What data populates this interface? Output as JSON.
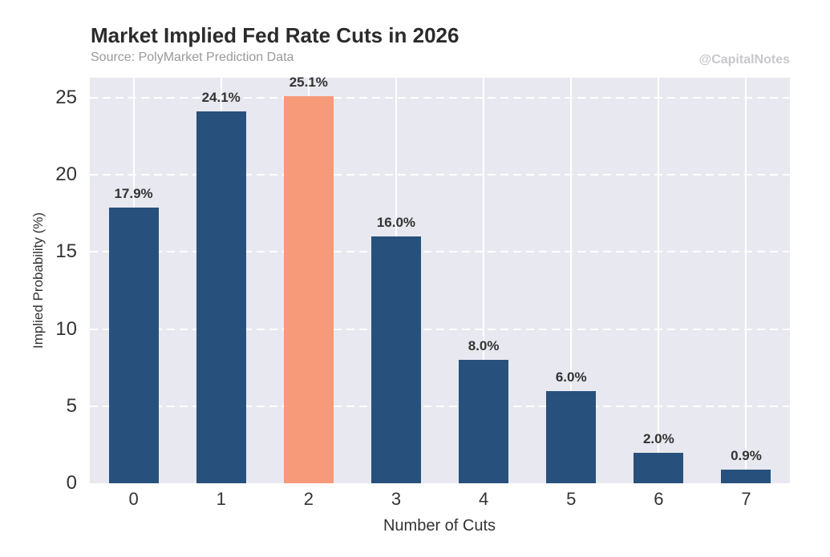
{
  "header": {
    "title": "Market Implied Fed Rate Cuts in 2026",
    "subtitle": "Source: PolyMarket Prediction Data",
    "watermark": "@CapitalNotes"
  },
  "chart_data": {
    "type": "bar",
    "title": "Market Implied Fed Rate Cuts in 2026",
    "subtitle": "Source: PolyMarket Prediction Data",
    "xlabel": "Number of Cuts",
    "ylabel": "Implied Probability (%)",
    "categories": [
      "0",
      "1",
      "2",
      "3",
      "4",
      "5",
      "6",
      "7"
    ],
    "values": [
      17.9,
      24.1,
      25.1,
      16.0,
      8.0,
      6.0,
      2.0,
      0.9
    ],
    "bar_labels": [
      "17.9%",
      "24.1%",
      "25.1%",
      "16.0%",
      "8.0%",
      "6.0%",
      "2.0%",
      "0.9%"
    ],
    "highlight_index": 2,
    "ylim": [
      0,
      26.3
    ],
    "yticks": [
      0,
      5,
      10,
      15,
      20,
      25
    ],
    "legend_position": "none",
    "grid": {
      "horizontal": "dashed-white",
      "vertical": "solid-white"
    },
    "colors": {
      "bar": "#27517c",
      "highlight_bar": "#f79a7a",
      "plot_background": "#e8e8f0",
      "figure_background": "#ffffff",
      "gridline": "#ffffff",
      "text": "#333333",
      "subtitle_text": "#9a9a9a",
      "watermark_text": "#c8c8cc"
    }
  }
}
